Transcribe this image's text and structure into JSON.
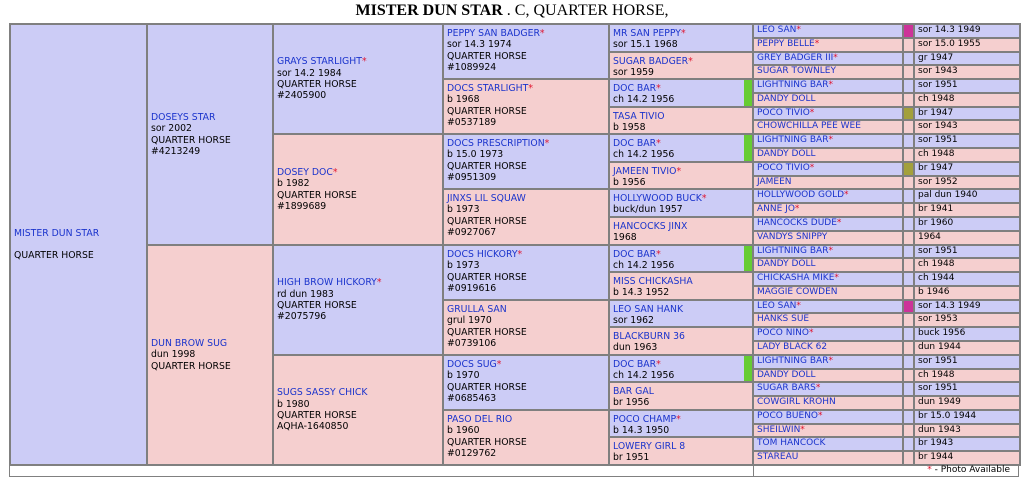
{
  "header": {
    "horse_name": "MISTER DUN STAR",
    "suffix": " . C, QUARTER HORSE,"
  },
  "footer": {
    "photo_star": "*",
    "photo_label": " - Photo Available"
  },
  "colors": {
    "male_bg": "#ccccf6",
    "female_bg": "#f5cfcf",
    "link": "#1a33cc",
    "star": "#e0102a",
    "green_bar": "#66cc33",
    "magenta_swatch": "#cc3399",
    "olive_swatch": "#a3a03c"
  },
  "subject": {
    "name": "MISTER DUN STAR",
    "breed": "QUARTER HORSE"
  },
  "gen1": [
    {
      "name": "DOSEYS STAR",
      "photo": "",
      "info": [
        "sor 2002",
        "QUARTER HORSE",
        "#4213249"
      ]
    },
    {
      "name": "DUN BROW SUG",
      "photo": "",
      "info": [
        "dun 1998",
        "QUARTER HORSE"
      ]
    }
  ],
  "gen2": [
    {
      "name": "GRAYS STARLIGHT",
      "photo": "*",
      "info": [
        "sor 14.2 1984",
        "QUARTER HORSE",
        "#2405900"
      ]
    },
    {
      "name": "DOSEY DOC",
      "photo": "*",
      "info": [
        "b 1982",
        "QUARTER HORSE",
        "#1899689"
      ]
    },
    {
      "name": "HIGH BROW HICKORY",
      "photo": "*",
      "info": [
        "rd dun 1983",
        "QUARTER HORSE",
        "#2075796"
      ]
    },
    {
      "name": "SUGS SASSY CHICK",
      "photo": "",
      "info": [
        "b 1980",
        "QUARTER HORSE",
        "AQHA-1640850"
      ]
    }
  ],
  "gen3": [
    {
      "name": "PEPPY SAN BADGER",
      "photo": "*",
      "info": [
        "sor 14.3 1974",
        "QUARTER HORSE",
        "#1089924"
      ]
    },
    {
      "name": "DOCS STARLIGHT",
      "photo": "*",
      "info": [
        "b 1968",
        "QUARTER HORSE",
        "#0537189"
      ]
    },
    {
      "name": "DOCS PRESCRIPTION",
      "photo": "*",
      "info": [
        "b 15.0 1973",
        "QUARTER HORSE",
        "#0951309"
      ]
    },
    {
      "name": "JINXS LIL SQUAW",
      "photo": "",
      "info": [
        "b 1973",
        "QUARTER HORSE",
        "#0927067"
      ]
    },
    {
      "name": "DOCS HICKORY",
      "photo": "*",
      "info": [
        "b 1973",
        "QUARTER HORSE",
        "#0919616"
      ]
    },
    {
      "name": "GRULLA SAN",
      "photo": "",
      "info": [
        "grul 1970",
        "QUARTER HORSE",
        "#0739106"
      ]
    },
    {
      "name": "DOCS SUG",
      "photo": "*",
      "info": [
        "b 1970",
        "QUARTER HORSE",
        "#0685463"
      ]
    },
    {
      "name": "PASO DEL RIO",
      "photo": "",
      "info": [
        "b 1960",
        "QUARTER HORSE",
        "#0129762"
      ]
    }
  ],
  "gen4": [
    {
      "name": "MR SAN PEPPY",
      "photo": "*",
      "info": [
        "sor 15.1 1968"
      ]
    },
    {
      "name": "SUGAR BADGER",
      "photo": "*",
      "info": [
        "sor 1959"
      ]
    },
    {
      "name": "DOC BAR",
      "photo": "*",
      "info": [
        "ch 14.2 1956"
      ]
    },
    {
      "name": "TASA TIVIO",
      "photo": "",
      "info": [
        "b 1958"
      ]
    },
    {
      "name": "DOC BAR",
      "photo": "*",
      "info": [
        "ch 14.2 1956"
      ]
    },
    {
      "name": "JAMEEN TIVIO",
      "photo": "*",
      "info": [
        "b 1956"
      ]
    },
    {
      "name": "HOLLYWOOD BUCK",
      "photo": "*",
      "info": [
        "buck/dun 1957"
      ]
    },
    {
      "name": "HANCOCKS JINX",
      "photo": "",
      "info": [
        "1968"
      ]
    },
    {
      "name": "DOC BAR",
      "photo": "*",
      "info": [
        "ch 14.2 1956"
      ]
    },
    {
      "name": "MISS CHICKASHA",
      "photo": "",
      "info": [
        "b 14.3 1952"
      ]
    },
    {
      "name": "LEO SAN HANK",
      "photo": "",
      "info": [
        "sor 1962"
      ]
    },
    {
      "name": "BLACKBURN 36",
      "photo": "",
      "info": [
        "dun 1963"
      ]
    },
    {
      "name": "DOC BAR",
      "photo": "*",
      "info": [
        "ch 14.2 1956"
      ]
    },
    {
      "name": "BAR GAL",
      "photo": "",
      "info": [
        "br 1956"
      ]
    },
    {
      "name": "POCO CHAMP",
      "photo": "*",
      "info": [
        "b 14.3 1950"
      ]
    },
    {
      "name": "LOWERY GIRL 8",
      "photo": "",
      "info": [
        "br 1951"
      ]
    }
  ],
  "gen5": [
    {
      "name": "LEO SAN",
      "photo": "*",
      "info": "sor 14.3 1949"
    },
    {
      "name": "PEPPY BELLE",
      "photo": "*",
      "info": "sor 15.0 1955"
    },
    {
      "name": "GREY BADGER III",
      "photo": "*",
      "info": "gr 1947"
    },
    {
      "name": "SUGAR TOWNLEY",
      "photo": "",
      "info": "sor 1943"
    },
    {
      "name": "LIGHTNING BAR",
      "photo": "*",
      "info": "sor 1951"
    },
    {
      "name": "DANDY DOLL",
      "photo": "",
      "info": "ch 1948"
    },
    {
      "name": "POCO TIVIO",
      "photo": "*",
      "info": "br 1947"
    },
    {
      "name": "CHOWCHILLA PEE WEE",
      "photo": "",
      "info": "sor 1943"
    },
    {
      "name": "LIGHTNING BAR",
      "photo": "*",
      "info": "sor 1951"
    },
    {
      "name": "DANDY DOLL",
      "photo": "",
      "info": "ch 1948"
    },
    {
      "name": "POCO TIVIO",
      "photo": "*",
      "info": "br 1947"
    },
    {
      "name": "JAMEEN",
      "photo": "",
      "info": "sor 1952"
    },
    {
      "name": "HOLLYWOOD GOLD",
      "photo": "*",
      "info": "pal dun 1940"
    },
    {
      "name": "ANNE JO",
      "photo": "*",
      "info": "br 1941"
    },
    {
      "name": "HANCOCKS DUDE",
      "photo": "*",
      "info": "br 1960"
    },
    {
      "name": "VANDYS SNIPPY",
      "photo": "",
      "info": "1964"
    },
    {
      "name": "LIGHTNING BAR",
      "photo": "*",
      "info": "sor 1951"
    },
    {
      "name": "DANDY DOLL",
      "photo": "",
      "info": "ch 1948"
    },
    {
      "name": "CHICKASHA MIKE",
      "photo": "*",
      "info": "ch 1944"
    },
    {
      "name": "MAGGIE COWDEN",
      "photo": "",
      "info": "b 1946"
    },
    {
      "name": "LEO SAN",
      "photo": "*",
      "info": "sor 14.3 1949"
    },
    {
      "name": "HANKS SUE",
      "photo": "",
      "info": "sor 1953"
    },
    {
      "name": "POCO NINO",
      "photo": "*",
      "info": "buck 1956"
    },
    {
      "name": "LADY BLACK 62",
      "photo": "",
      "info": "dun 1944"
    },
    {
      "name": "LIGHTNING BAR",
      "photo": "*",
      "info": "sor 1951"
    },
    {
      "name": "DANDY DOLL",
      "photo": "",
      "info": "ch 1948"
    },
    {
      "name": "SUGAR BARS",
      "photo": "*",
      "info": "sor 1951"
    },
    {
      "name": "COWGIRL KROHN",
      "photo": "",
      "info": "dun 1949"
    },
    {
      "name": "POCO BUENO",
      "photo": "*",
      "info": "br 15.0 1944"
    },
    {
      "name": "SHEILWIN",
      "photo": "*",
      "info": "dun 1943"
    },
    {
      "name": "TOM HANCOCK",
      "photo": "",
      "info": "br 1943"
    },
    {
      "name": "STAREAU",
      "photo": "",
      "info": "br 1944"
    }
  ],
  "gen5_swatches": [
    {
      "row": 0,
      "color": "magenta"
    },
    {
      "row": 6,
      "color": "olive"
    },
    {
      "row": 10,
      "color": "olive"
    },
    {
      "row": 20,
      "color": "magenta"
    }
  ],
  "gen4_greenbars": [
    2,
    4,
    8,
    12
  ]
}
